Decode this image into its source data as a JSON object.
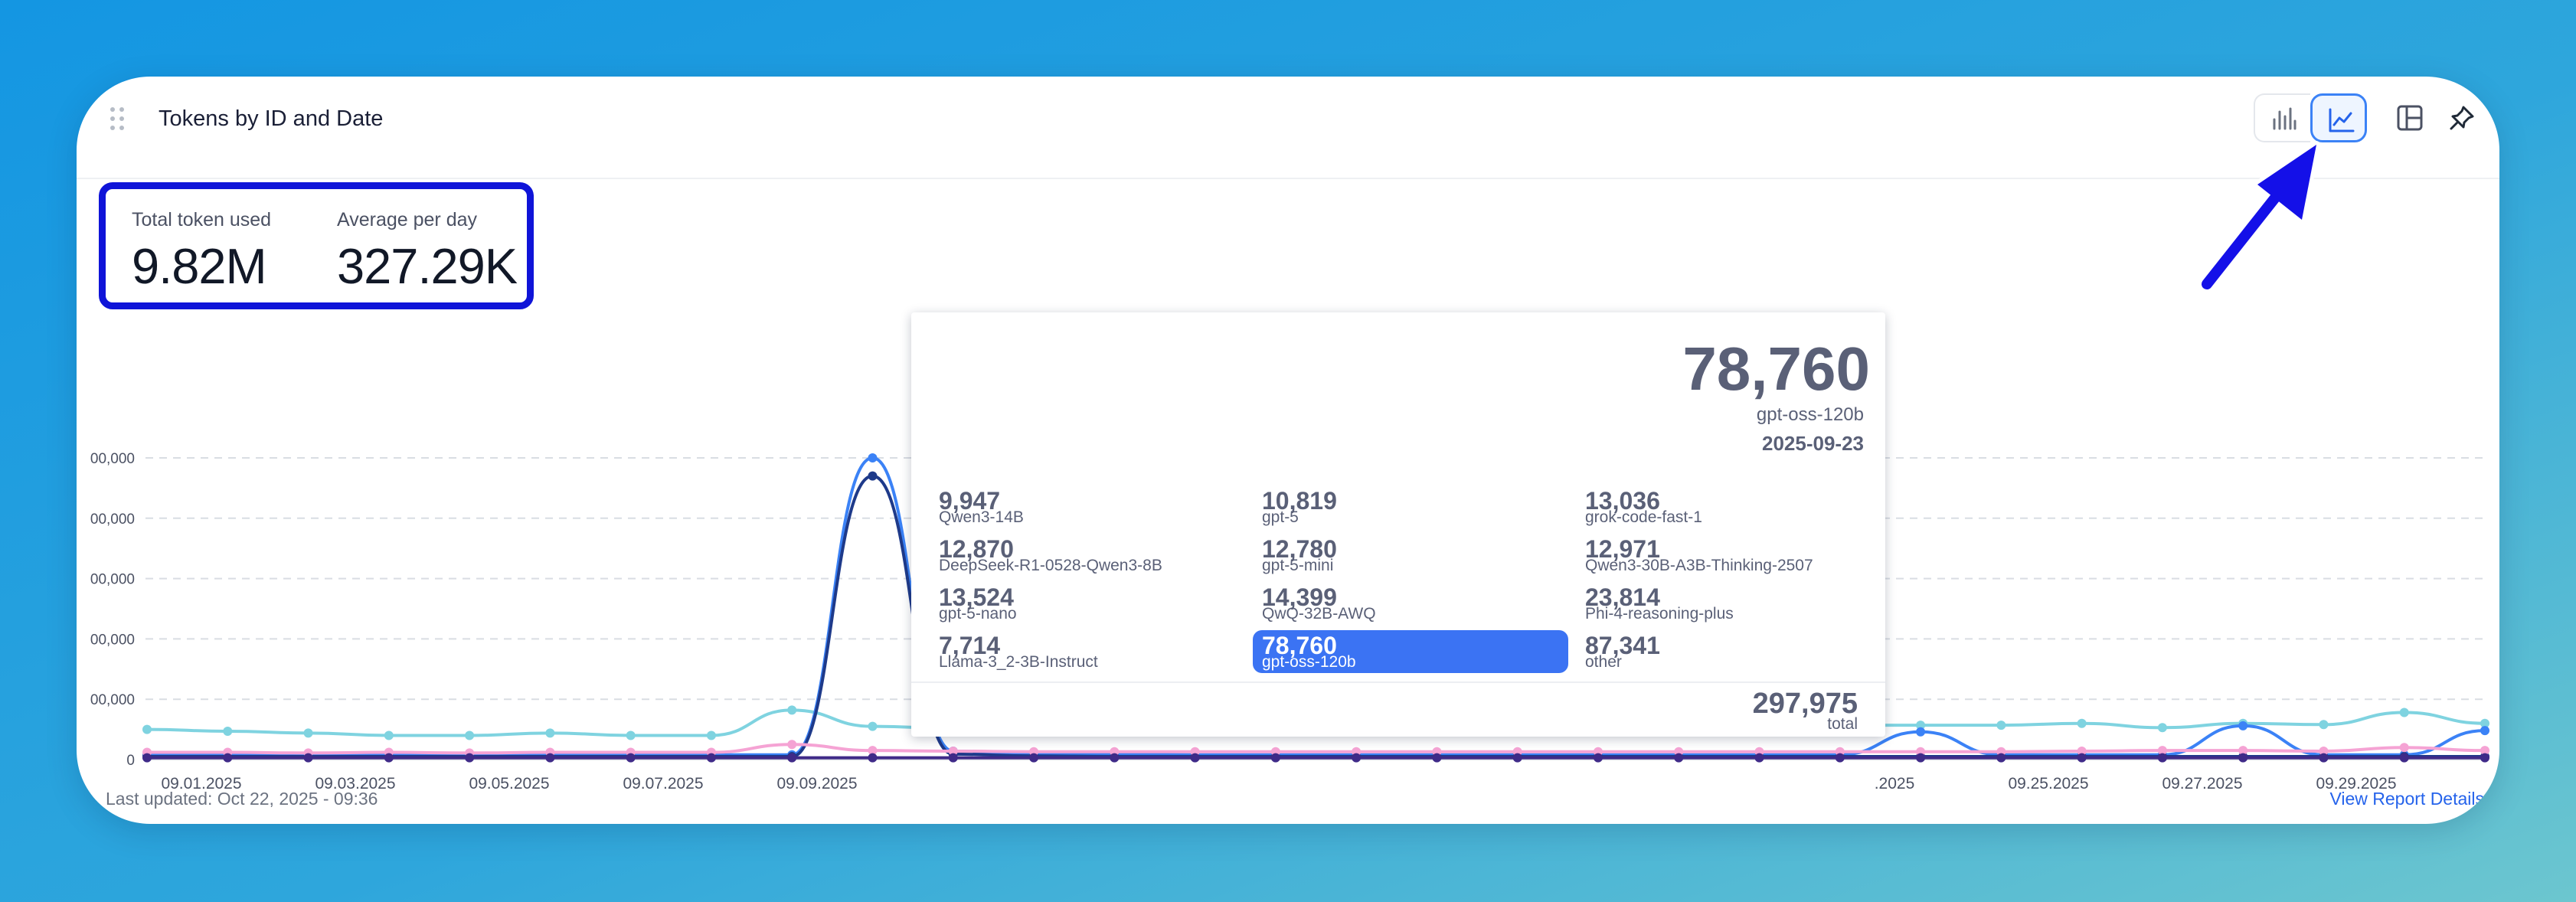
{
  "widget": {
    "title": "Tokens by ID and Date",
    "toolbar": {
      "bar_chart_icon": "bar-chart-icon",
      "line_chart_icon": "line-chart-icon",
      "layout_icon": "layout-icon",
      "pin_icon": "pin-icon",
      "active_view": "line"
    }
  },
  "kpis": [
    {
      "label": "Total token used",
      "value": "9.82M"
    },
    {
      "label": "Average per day",
      "value": "327.29K"
    }
  ],
  "chart_data": {
    "type": "line",
    "y_tick_labels": [
      "00,000",
      "00,000",
      "00,000",
      "00,000",
      "00,000",
      "0"
    ],
    "x_tick_labels": [
      "09.01.2025",
      "09.03.2025",
      "09.05.2025",
      "09.07.2025",
      "09.09.2025",
      "",
      "",
      "",
      "",
      "",
      "",
      ".2025",
      "09.25.2025",
      "09.27.2025",
      "09.29.2025"
    ],
    "grid": true,
    "series": [
      {
        "color": "#7fd3e0",
        "values": [
          50000,
          47000,
          44000,
          40000,
          40000,
          44000,
          40000,
          40000,
          82000,
          55000,
          52000,
          50000,
          52000,
          55000,
          50000,
          47000,
          52000,
          55000,
          53000,
          51000,
          53000,
          57000,
          57000,
          57000,
          60000,
          53000,
          60000,
          58000,
          78000,
          60000
        ]
      },
      {
        "color": "#3b82f6",
        "values": [
          8000,
          8000,
          8000,
          8000,
          8000,
          8000,
          8000,
          8000,
          8000,
          500000,
          14000,
          10000,
          9000,
          8000,
          8000,
          8000,
          8000,
          8000,
          8000,
          8000,
          8000,
          8000,
          46000,
          8000,
          8000,
          8000,
          56000,
          8000,
          8000,
          48000
        ]
      },
      {
        "color": "#1e3a8a",
        "values": [
          5000,
          5000,
          5000,
          5000,
          5000,
          5000,
          5000,
          5000,
          5000,
          470000,
          9000,
          6000,
          5000,
          5000,
          5000,
          5000,
          5000,
          5000,
          5000,
          5000,
          5000,
          5000,
          5000,
          5000,
          5000,
          5000,
          5000,
          5000,
          5000,
          5000
        ]
      },
      {
        "color": "#f5a3d4",
        "values": [
          12000,
          12000,
          11000,
          12000,
          11000,
          12000,
          12000,
          12000,
          25000,
          15000,
          14000,
          13000,
          13000,
          13000,
          13000,
          13000,
          13000,
          13000,
          13000,
          13000,
          13000,
          13000,
          13000,
          13000,
          14000,
          15000,
          15000,
          14000,
          20000,
          15000
        ]
      },
      {
        "color": "#3f2a88",
        "values": [
          3000,
          3000,
          3000,
          3000,
          3000,
          3000,
          3000,
          3000,
          3000,
          3000,
          3000,
          3000,
          3000,
          3000,
          3000,
          3000,
          3000,
          3000,
          3000,
          3000,
          3000,
          3000,
          3000,
          3000,
          3000,
          3000,
          3000,
          3000,
          3000,
          3000
        ]
      }
    ]
  },
  "tooltip": {
    "value": "78,760",
    "model": "gpt-oss-120b",
    "date": "2025-09-23",
    "items": [
      {
        "value": "9,947",
        "model": "Qwen3-14B"
      },
      {
        "value": "10,819",
        "model": "gpt-5"
      },
      {
        "value": "13,036",
        "model": "grok-code-fast-1"
      },
      {
        "value": "12,870",
        "model": "DeepSeek-R1-0528-Qwen3-8B"
      },
      {
        "value": "12,780",
        "model": "gpt-5-mini"
      },
      {
        "value": "12,971",
        "model": "Qwen3-30B-A3B-Thinking-2507"
      },
      {
        "value": "13,524",
        "model": "gpt-5-nano"
      },
      {
        "value": "14,399",
        "model": "QwQ-32B-AWQ"
      },
      {
        "value": "23,814",
        "model": "Phi-4-reasoning-plus"
      },
      {
        "value": "7,714",
        "model": "Llama-3_2-3B-Instruct"
      },
      {
        "value": "78,760",
        "model": "gpt-oss-120b",
        "highlighted": true
      },
      {
        "value": "87,341",
        "model": "other"
      }
    ],
    "total": "297,975",
    "total_label": "total"
  },
  "footer": {
    "last_updated": "Last updated: Oct 22, 2025 - 09:36",
    "report_link": "View Report Details"
  },
  "annotation": {
    "box_color": "#0f14d8",
    "arrow_color": "#1410e8"
  }
}
